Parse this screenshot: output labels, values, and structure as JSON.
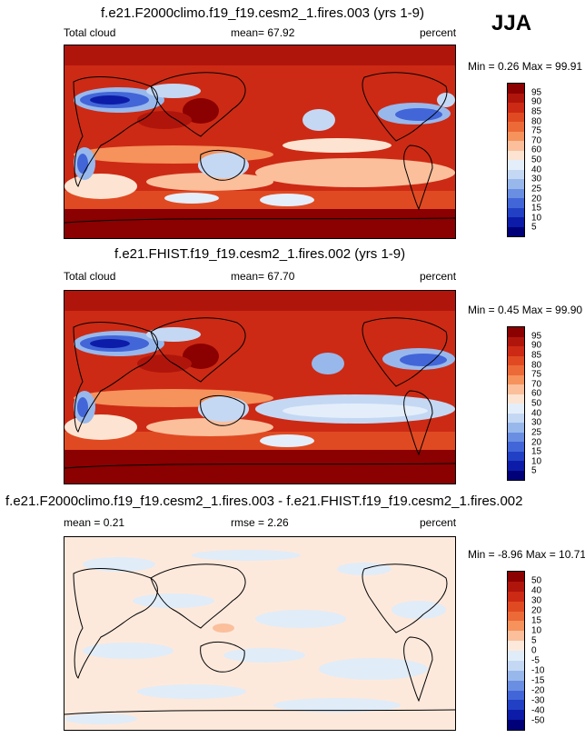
{
  "season": "JJA",
  "panels": [
    {
      "title": "f.e21.F2000climo.f19_f19.cesm2_1.fires.003 (yrs 1-9)",
      "left_label": "Total cloud",
      "center_label": "mean=  67.92",
      "right_label": "percent",
      "minmax": "Min =   0.26 Max =  99.91",
      "ticks": [
        "95",
        "90",
        "85",
        "80",
        "75",
        "70",
        "60",
        "50",
        "40",
        "30",
        "25",
        "20",
        "15",
        "10",
        "5"
      ]
    },
    {
      "title": "f.e21.FHIST.f19_f19.cesm2_1.fires.002 (yrs 1-9)",
      "left_label": "Total cloud",
      "center_label": "mean=  67.70",
      "right_label": "percent",
      "minmax": "Min =   0.45 Max =  99.90",
      "ticks": [
        "95",
        "90",
        "85",
        "80",
        "75",
        "70",
        "60",
        "50",
        "40",
        "30",
        "25",
        "20",
        "15",
        "10",
        "5"
      ]
    },
    {
      "title": "f.e21.F2000climo.f19_f19.cesm2_1.fires.003 - f.e21.FHIST.f19_f19.cesm2_1.fires.002",
      "left_label": "mean =   0.21",
      "center_label": "rmse =   2.26",
      "right_label": "percent",
      "minmax": "Min =  -8.96 Max =  10.71",
      "ticks": [
        "50",
        "40",
        "30",
        "20",
        "15",
        "10",
        "5",
        "0",
        "-5",
        "-10",
        "-15",
        "-20",
        "-30",
        "-40",
        "-50"
      ]
    }
  ],
  "colors": {
    "abs_scale": [
      "#8b0000",
      "#b0150c",
      "#cc2a14",
      "#e04a22",
      "#ec6a38",
      "#f6925c",
      "#fbbf9c",
      "#fde4d2",
      "#e4eefa",
      "#c4d8f4",
      "#98b8ec",
      "#6a8ee2",
      "#4266d8",
      "#2240c4",
      "#0c1ca8",
      "#000078"
    ],
    "diff_scale": [
      "#8b0000",
      "#b0150c",
      "#cc2a14",
      "#e04a22",
      "#ec6a38",
      "#f6925c",
      "#fbbf9c",
      "#fde9dc",
      "#e0ecf8",
      "#c4d8f4",
      "#98b8ec",
      "#6a8ee2",
      "#4266d8",
      "#2240c4",
      "#0c1ca8",
      "#000078"
    ]
  }
}
